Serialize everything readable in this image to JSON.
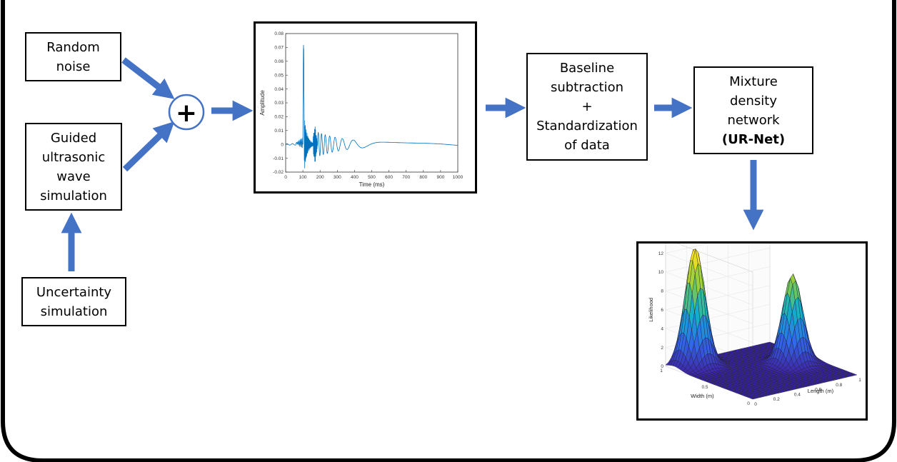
{
  "nodes": {
    "random_noise": {
      "lines": [
        "Random",
        "noise"
      ]
    },
    "guided_wave": {
      "lines": [
        "Guided",
        "ultrasonic",
        "wave",
        "simulation"
      ]
    },
    "uncertainty": {
      "lines": [
        "Uncertainty",
        "simulation"
      ]
    },
    "sum_symbol": "+",
    "preprocess": {
      "lines": [
        "Baseline",
        "subtraction",
        "+",
        "Standardization",
        "of data"
      ]
    },
    "mdn": {
      "lines": [
        "Mixture",
        "density",
        "network"
      ],
      "bold_line": "(UR-Net)"
    }
  },
  "colors": {
    "arrow": "#4472C4",
    "signal": "#0072BD"
  },
  "chart_data": [
    {
      "type": "line",
      "title": "",
      "xlabel": "Time (ms)",
      "ylabel": "Amplitude",
      "xlim": [
        0,
        1000
      ],
      "ylim": [
        -0.02,
        0.08
      ],
      "xticks": [
        "0",
        "100",
        "200",
        "300",
        "400",
        "500",
        "600",
        "700",
        "800",
        "900",
        "1000"
      ],
      "yticks": [
        "-0.02",
        "-0.01",
        "0",
        "0.01",
        "0.02",
        "0.03",
        "0.04",
        "0.05",
        "0.06",
        "0.07",
        "0.08"
      ],
      "series": [
        {
          "x": [
            0,
            60,
            90,
            100,
            105,
            110,
            120,
            150,
            170,
            180,
            200,
            250,
            300,
            350,
            400,
            450,
            500,
            600,
            700,
            800,
            900,
            1000
          ],
          "y": [
            0,
            0.001,
            0.003,
            0.005,
            0.072,
            0.01,
            0.004,
            -0.005,
            0.013,
            -0.008,
            0.004,
            0.003,
            -0.003,
            0.002,
            -0.002,
            0.002,
            -0.002,
            0.001,
            -0.001,
            0.001,
            -0.001,
            0
          ]
        }
      ]
    },
    {
      "type": "surface",
      "title": "",
      "xlabel": "Length (m)",
      "ylabel": "Width (m)",
      "zlabel": "Likelihood",
      "xticks": [
        "0",
        "0.2",
        "0.4",
        "0.6",
        "0.8",
        "1"
      ],
      "yticks": [
        "0",
        "0.5",
        "1"
      ],
      "zticks": [
        "0",
        "2",
        "4",
        "6",
        "8",
        "10",
        "12"
      ],
      "zlim": [
        0,
        12
      ],
      "peaks": [
        {
          "length": 0.2,
          "width": 0.9,
          "likelihood": 12.5
        },
        {
          "length": 0.8,
          "width": 0.5,
          "likelihood": 9.5
        }
      ]
    }
  ]
}
